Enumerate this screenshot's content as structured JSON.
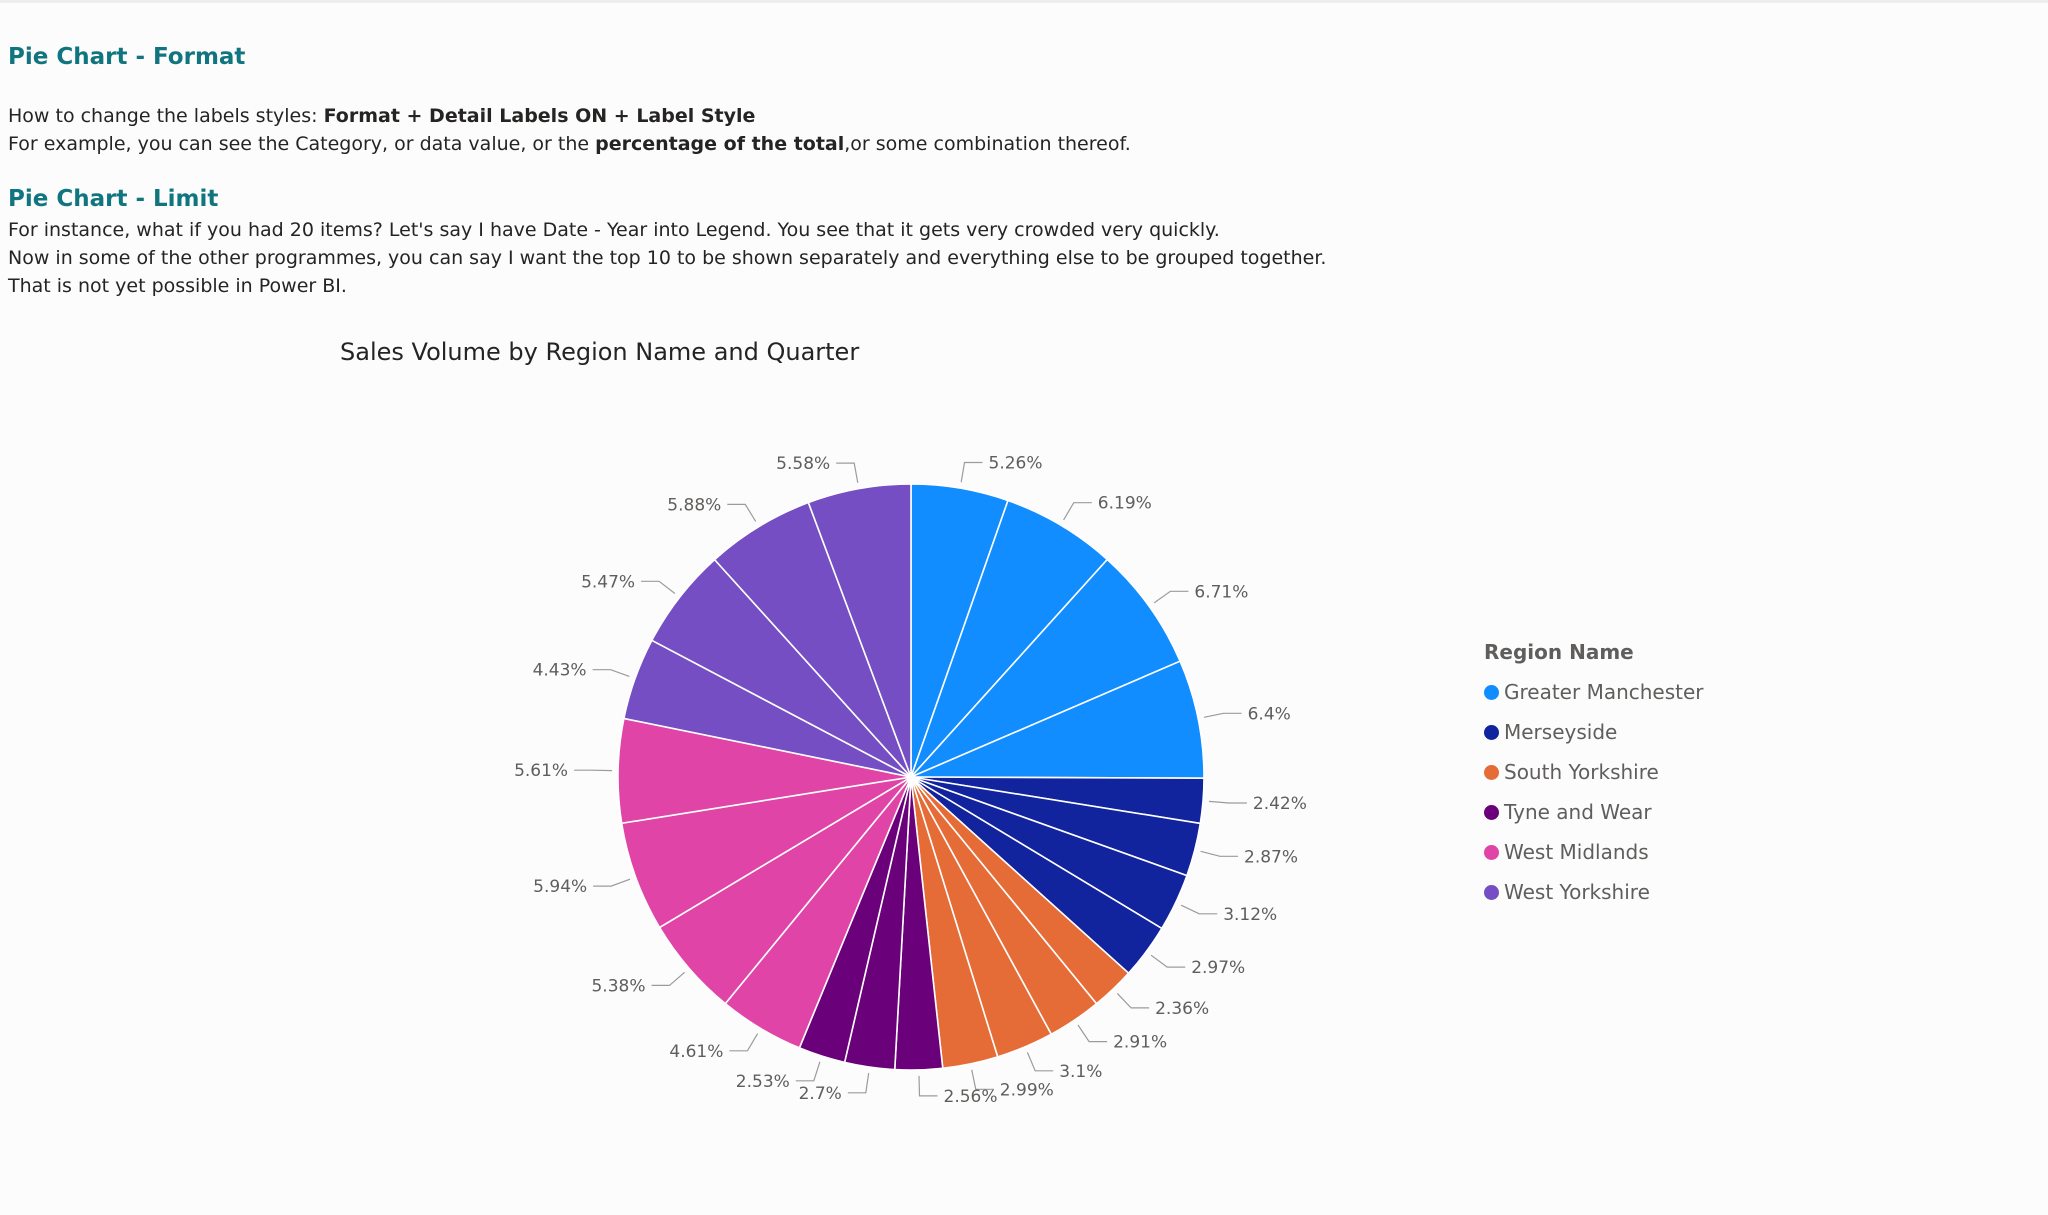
{
  "sections": [
    {
      "heading": "Pie Chart - Format",
      "lines": [
        {
          "plain": "How to change the labels styles: ",
          "bold": "Format + Detail Labels ON + Label Style",
          "tail": ""
        },
        {
          "plain": "For example, you can see the Category, or data value, or the ",
          "bold": "percentage of the total",
          "tail": ",or some combination thereof."
        }
      ]
    },
    {
      "heading": "Pie Chart - Limit",
      "lines": [
        "For instance, what if you had 20 items? Let's say I have Date - Year into Legend. You see that it gets very crowded very quickly.",
        "Now in some of the other programmes, you can say I want the top 10 to be shown separately and everything else to be grouped together.",
        "That is not yet possible in Power BI."
      ]
    }
  ],
  "chart_data": {
    "type": "pie",
    "title": "Sales Volume by Region Name and Quarter",
    "legend_title": "Region Name",
    "legend_position": "right",
    "regions": [
      {
        "name": "Greater Manchester",
        "color": "#118dff"
      },
      {
        "name": "Merseyside",
        "color": "#12239e"
      },
      {
        "name": "South Yorkshire",
        "color": "#e66c37"
      },
      {
        "name": "Tyne and Wear",
        "color": "#6b007b"
      },
      {
        "name": "West Midlands",
        "color": "#e044a7"
      },
      {
        "name": "West Yorkshire",
        "color": "#744ec2"
      }
    ],
    "slices": [
      {
        "region": "Greater Manchester",
        "value": 5.26,
        "label": "5.26%"
      },
      {
        "region": "Greater Manchester",
        "value": 6.19,
        "label": "6.19%"
      },
      {
        "region": "Greater Manchester",
        "value": 6.71,
        "label": "6.71%"
      },
      {
        "region": "Greater Manchester",
        "value": 6.4,
        "label": "6.4%"
      },
      {
        "region": "Merseyside",
        "value": 2.42,
        "label": "2.42%"
      },
      {
        "region": "Merseyside",
        "value": 2.87,
        "label": "2.87%"
      },
      {
        "region": "Merseyside",
        "value": 3.12,
        "label": "3.12%"
      },
      {
        "region": "Merseyside",
        "value": 2.97,
        "label": "2.97%"
      },
      {
        "region": "South Yorkshire",
        "value": 2.36,
        "label": "2.36%"
      },
      {
        "region": "South Yorkshire",
        "value": 2.91,
        "label": "2.91%"
      },
      {
        "region": "South Yorkshire",
        "value": 3.1,
        "label": "3.1%"
      },
      {
        "region": "South Yorkshire",
        "value": 2.99,
        "label": "2.99%"
      },
      {
        "region": "Tyne and Wear",
        "value": 2.56,
        "label": "2.56%"
      },
      {
        "region": "Tyne and Wear",
        "value": 2.7,
        "label": "2.7%"
      },
      {
        "region": "Tyne and Wear",
        "value": 2.53,
        "label": "2.53%"
      },
      {
        "region": "West Midlands",
        "value": 4.61,
        "label": "4.61%"
      },
      {
        "region": "West Midlands",
        "value": 5.38,
        "label": "5.38%"
      },
      {
        "region": "West Midlands",
        "value": 5.94,
        "label": "5.94%"
      },
      {
        "region": "West Midlands",
        "value": 5.61,
        "label": "5.61%"
      },
      {
        "region": "West Yorkshire",
        "value": 4.43,
        "label": "4.43%"
      },
      {
        "region": "West Yorkshire",
        "value": 5.47,
        "label": "5.47%"
      },
      {
        "region": "West Yorkshire",
        "value": 5.88,
        "label": "5.88%"
      },
      {
        "region": "West Yorkshire",
        "value": 5.58,
        "label": "5.58%"
      }
    ]
  }
}
